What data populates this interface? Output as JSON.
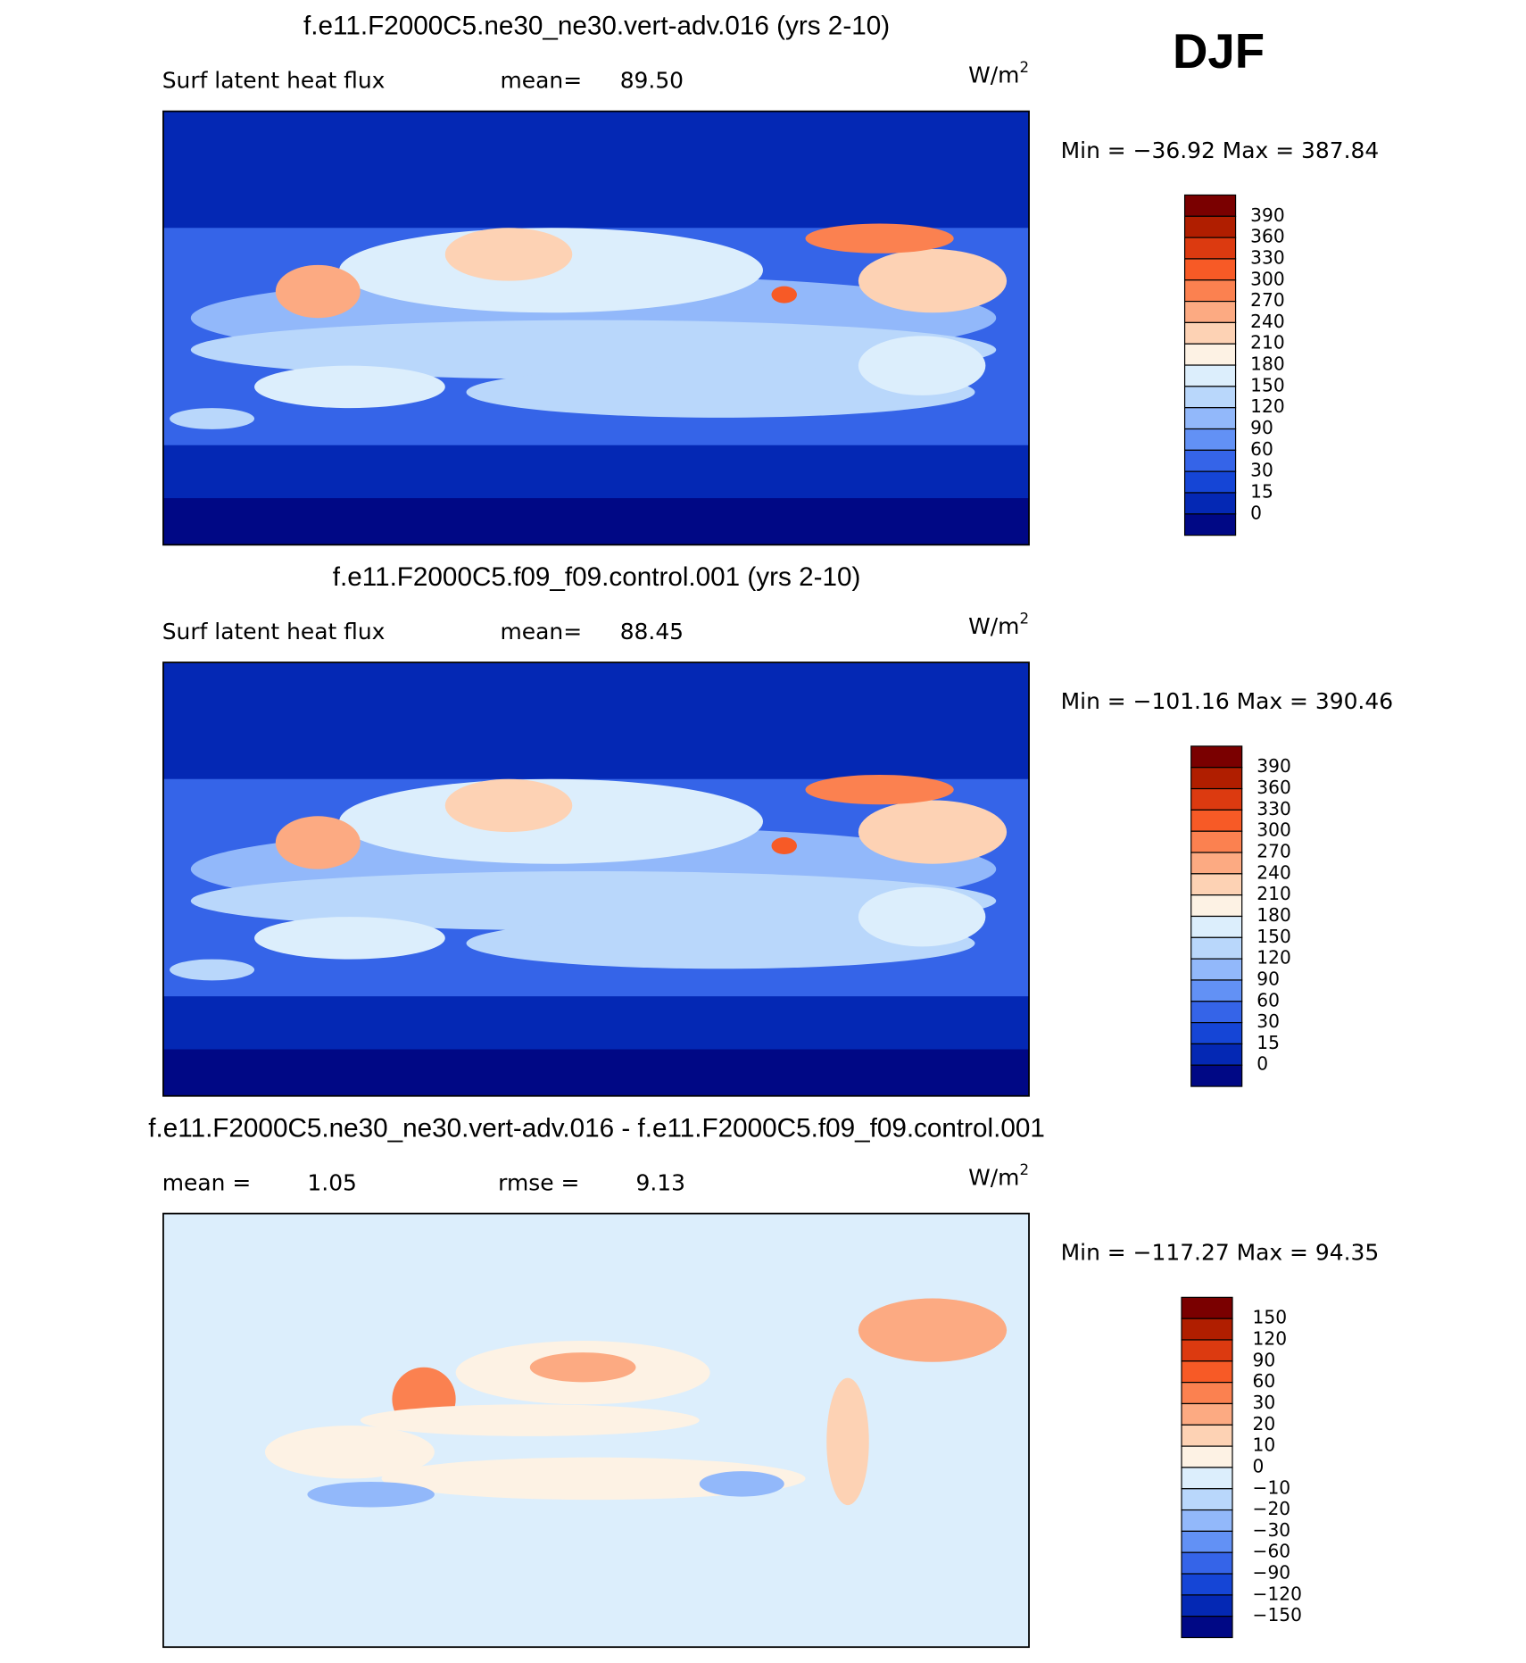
{
  "title": "DJF",
  "panels": [
    {
      "title": "f.e11.F2000C5.ne30_ne30.vert-adv.016 (yrs 2-10)",
      "variable": "Surf latent heat flux",
      "stats": [
        {
          "label": "mean=",
          "value": "89.50"
        }
      ],
      "units": "W/m",
      "units_exp": "2",
      "range": "Min = −36.92 Max = 387.84",
      "colorbar": {
        "levels": [
          "390",
          "360",
          "330",
          "300",
          "270",
          "240",
          "210",
          "180",
          "150",
          "120",
          "90",
          "60",
          "30",
          "15",
          "0"
        ],
        "colors": [
          "#7a0000",
          "#b01e00",
          "#dc3a10",
          "#f75a26",
          "#fb8150",
          "#fcaa82",
          "#fdd2b4",
          "#fdf2e4",
          "#dceefc",
          "#b9d7fb",
          "#92b8fa",
          "#6291f5",
          "#3564e8",
          "#1545d6",
          "#0428b4",
          "#000885"
        ]
      }
    },
    {
      "title": "f.e11.F2000C5.f09_f09.control.001 (yrs 2-10)",
      "variable": "Surf latent heat flux",
      "stats": [
        {
          "label": "mean=",
          "value": "88.45"
        }
      ],
      "units": "W/m",
      "units_exp": "2",
      "range": "Min = −101.16 Max = 390.46",
      "colorbar": {
        "levels": [
          "390",
          "360",
          "330",
          "300",
          "270",
          "240",
          "210",
          "180",
          "150",
          "120",
          "90",
          "60",
          "30",
          "15",
          "0"
        ],
        "colors": [
          "#7a0000",
          "#b01e00",
          "#dc3a10",
          "#f75a26",
          "#fb8150",
          "#fcaa82",
          "#fdd2b4",
          "#fdf2e4",
          "#dceefc",
          "#b9d7fb",
          "#92b8fa",
          "#6291f5",
          "#3564e8",
          "#1545d6",
          "#0428b4",
          "#000885"
        ]
      }
    },
    {
      "title": "f.e11.F2000C5.ne30_ne30.vert-adv.016 - f.e11.F2000C5.f09_f09.control.001",
      "stats": [
        {
          "label": "mean =",
          "value": "1.05"
        },
        {
          "label": "rmse =",
          "value": "9.13"
        }
      ],
      "units": "W/m",
      "units_exp": "2",
      "range": "Min = −117.27 Max =  94.35",
      "colorbar": {
        "levels": [
          "150",
          "120",
          "90",
          "60",
          "30",
          "20",
          "10",
          "0",
          "−10",
          "−20",
          "−30",
          "−60",
          "−90",
          "−120",
          "−150"
        ],
        "colors": [
          "#7a0000",
          "#b01e00",
          "#dc3a10",
          "#f75a26",
          "#fb8150",
          "#fcaa82",
          "#fdd2b4",
          "#fdf2e4",
          "#dceefc",
          "#b9d7fb",
          "#92b8fa",
          "#6291f5",
          "#3564e8",
          "#1545d6",
          "#0428b4",
          "#000885"
        ]
      }
    }
  ]
}
